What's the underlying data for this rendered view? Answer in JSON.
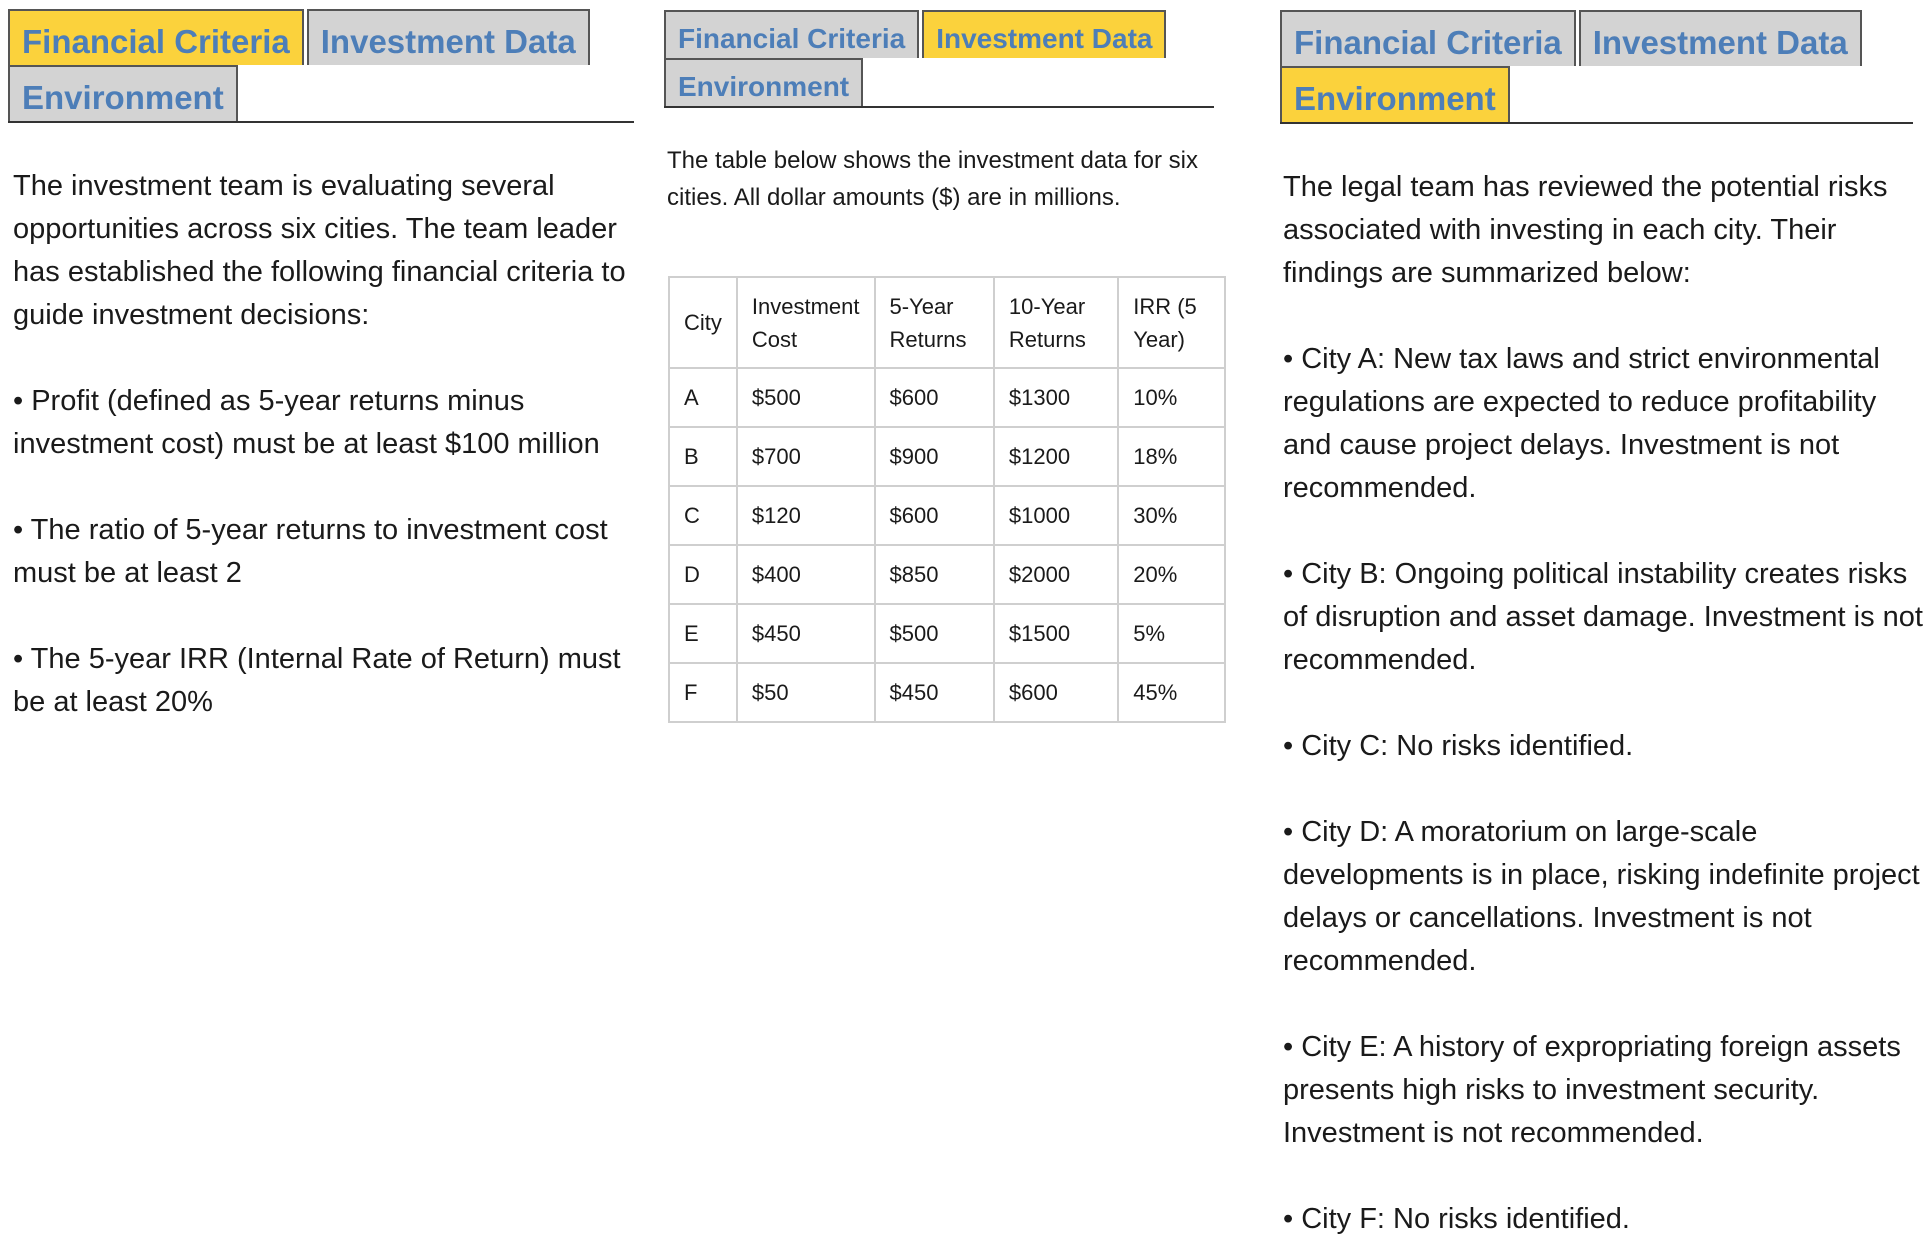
{
  "panels": [
    {
      "tabs": [
        {
          "label": "Financial Criteria",
          "active": true
        },
        {
          "label": "Investment Data",
          "active": false
        },
        {
          "label": "Environment",
          "active": false
        }
      ],
      "paragraphs": [
        "The investment team is evaluating several opportunities across six cities. The team leader has established the following financial criteria to guide investment decisions:",
        "• Profit (defined as 5-year returns minus investment cost) must be at least $100 million",
        "• The ratio of 5-year returns to investment cost must be at least 2",
        "• The 5-year IRR (Internal Rate of Return) must be at least 20%"
      ]
    },
    {
      "tabs": [
        {
          "label": "Financial Criteria",
          "active": false
        },
        {
          "label": "Investment Data",
          "active": true
        },
        {
          "label": "Environment",
          "active": false
        }
      ],
      "intro": "The table below shows the investment data for six cities. All dollar amounts ($) are in millions.",
      "table": {
        "headers": [
          "City",
          "Investment Cost",
          "5-Year Returns",
          "10-Year Returns",
          "IRR (5 Year)"
        ],
        "rows": [
          [
            "A",
            "$500",
            "$600",
            "$1300",
            "10%"
          ],
          [
            "B",
            "$700",
            "$900",
            "$1200",
            "18%"
          ],
          [
            "C",
            "$120",
            "$600",
            "$1000",
            "30%"
          ],
          [
            "D",
            "$400",
            "$850",
            "$2000",
            "20%"
          ],
          [
            "E",
            "$450",
            "$500",
            "$1500",
            "5%"
          ],
          [
            "F",
            "$50",
            "$450",
            "$600",
            "45%"
          ]
        ]
      }
    },
    {
      "tabs": [
        {
          "label": "Financial Criteria",
          "active": false
        },
        {
          "label": "Investment Data",
          "active": false
        },
        {
          "label": "Environment",
          "active": true
        }
      ],
      "paragraphs": [
        "The legal team has reviewed the potential risks associated with investing in each city. Their findings are summarized below:",
        "• City A: New tax laws and strict environmental regulations are expected to reduce profitability and cause project delays. Investment is not recommended.",
        "• City B: Ongoing political instability creates risks of disruption and asset damage. Investment is not recommended.",
        "• City C: No risks identified.",
        "• City D: A moratorium on large-scale developments is in place, risking indefinite project delays or cancellations. Investment is not recommended.",
        "• City E: A history of expropriating foreign assets presents high risks to investment security. Investment is not recommended.",
        "• City F: No risks identified."
      ]
    }
  ]
}
